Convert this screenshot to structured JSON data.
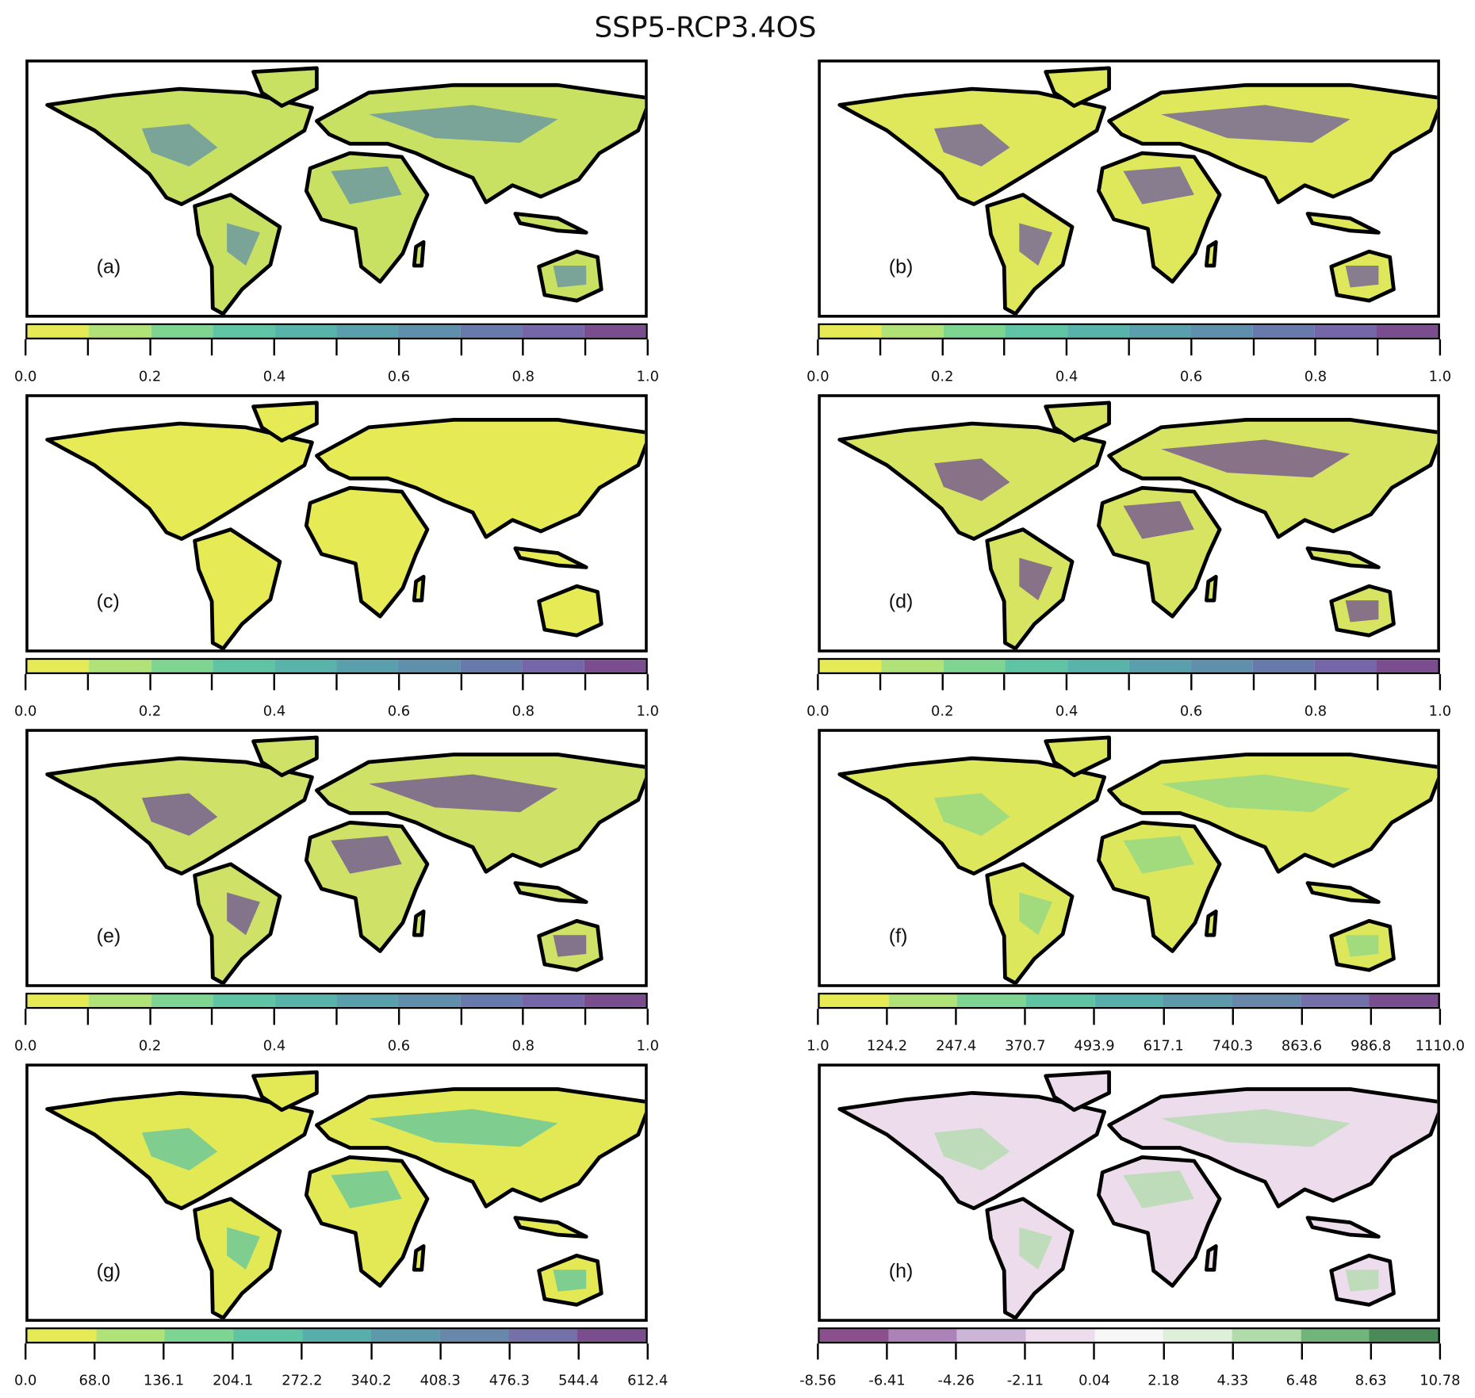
{
  "title": "SSP5-RCP3.4OS",
  "chart_data": {
    "type": "heatmap",
    "title": "SSP5-RCP3.4OS",
    "panels": [
      {
        "label": "(a)",
        "land_color": "#c9e163",
        "accent_color": "#5d8fa8",
        "colorbar": {
          "range": [
            0.0,
            1.0
          ],
          "bins": 10,
          "colors": [
            "#e5ea55",
            "#b0e277",
            "#7dd591",
            "#5ec4a4",
            "#58b3aa",
            "#59a0ac",
            "#5f8fab",
            "#677aab",
            "#7466a8",
            "#7a4e8e"
          ],
          "tick_labels": [
            "0.0",
            "0.2",
            "0.4",
            "0.6",
            "0.8",
            "1.0"
          ]
        }
      },
      {
        "label": "(b)",
        "land_color": "#dfe75a",
        "accent_color": "#6a5aa0",
        "colorbar": {
          "range": [
            0.0,
            1.0
          ],
          "bins": 10,
          "colors": [
            "#e5ea55",
            "#b0e277",
            "#7dd591",
            "#5ec4a4",
            "#58b3aa",
            "#59a0ac",
            "#5f8fab",
            "#677aab",
            "#7466a8",
            "#7a4e8e"
          ],
          "tick_labels": [
            "0.0",
            "0.2",
            "0.4",
            "0.6",
            "0.8",
            "1.0"
          ]
        }
      },
      {
        "label": "(c)",
        "land_color": "#e5ea55",
        "accent_color": "#e5ea55",
        "colorbar": {
          "range": [
            0.0,
            1.0
          ],
          "bins": 10,
          "colors": [
            "#e5ea55",
            "#b0e277",
            "#7dd591",
            "#5ec4a4",
            "#58b3aa",
            "#59a0ac",
            "#5f8fab",
            "#677aab",
            "#7466a8",
            "#7a4e8e"
          ],
          "tick_labels": [
            "0.0",
            "0.2",
            "0.4",
            "0.6",
            "0.8",
            "1.0"
          ]
        }
      },
      {
        "label": "(d)",
        "land_color": "#d6e462",
        "accent_color": "#6c4c96",
        "colorbar": {
          "range": [
            0.0,
            1.0
          ],
          "bins": 10,
          "colors": [
            "#e5ea55",
            "#b0e277",
            "#7dd591",
            "#5ec4a4",
            "#58b3aa",
            "#59a0ac",
            "#5f8fab",
            "#677aab",
            "#7466a8",
            "#7a4e8e"
          ],
          "tick_labels": [
            "0.0",
            "0.2",
            "0.4",
            "0.6",
            "0.8",
            "1.0"
          ]
        }
      },
      {
        "label": "(e)",
        "land_color": "#cfe166",
        "accent_color": "#6a4e98",
        "colorbar": {
          "range": [
            0.0,
            1.0
          ],
          "bins": 10,
          "colors": [
            "#e5ea55",
            "#b0e277",
            "#7dd591",
            "#5ec4a4",
            "#58b3aa",
            "#59a0ac",
            "#5f8fab",
            "#677aab",
            "#7466a8",
            "#7a4e8e"
          ],
          "tick_labels": [
            "0.0",
            "0.2",
            "0.4",
            "0.6",
            "0.8",
            "1.0"
          ]
        }
      },
      {
        "label": "(f)",
        "land_color": "#dce75c",
        "accent_color": "#8fd58a",
        "colorbar": {
          "range": [
            1.0,
            1110.0
          ],
          "bins": 9,
          "colors": [
            "#e5ea55",
            "#b0e277",
            "#7dd591",
            "#5ec4a4",
            "#58aeaa",
            "#5c9aab",
            "#6787ab",
            "#7470aa",
            "#7a4e8e"
          ],
          "tick_labels": [
            "1.0",
            "124.2",
            "247.4",
            "370.7",
            "493.9",
            "617.1",
            "740.3",
            "863.6",
            "986.8",
            "1110.0"
          ]
        }
      },
      {
        "label": "(g)",
        "land_color": "#e3e955",
        "accent_color": "#5ec4a4",
        "colorbar": {
          "range": [
            0.0,
            612.4
          ],
          "bins": 9,
          "colors": [
            "#e5ea55",
            "#b0e277",
            "#7dd591",
            "#5ec4a4",
            "#58aeaa",
            "#5c9aab",
            "#6787ab",
            "#7470aa",
            "#7a4e8e"
          ],
          "tick_labels": [
            "0.0",
            "68.0",
            "136.1",
            "204.1",
            "272.2",
            "340.2",
            "408.3",
            "476.3",
            "544.4",
            "612.4"
          ]
        }
      },
      {
        "label": "(h)",
        "land_color": "#ecdcec",
        "accent_color": "#b0dcaa",
        "colorbar": {
          "range": [
            -8.56,
            10.78
          ],
          "bins": 9,
          "colors": [
            "#8b4f8e",
            "#ac83b8",
            "#cdb5d8",
            "#ecdcec",
            "#f7f7f7",
            "#dff0da",
            "#b0dcaa",
            "#72b57a",
            "#4a8a58"
          ],
          "tick_labels": [
            "-8.56",
            "-6.41",
            "-4.26",
            "-2.11",
            "0.04",
            "2.18",
            "4.33",
            "6.48",
            "8.63",
            "10.78"
          ]
        }
      }
    ]
  }
}
